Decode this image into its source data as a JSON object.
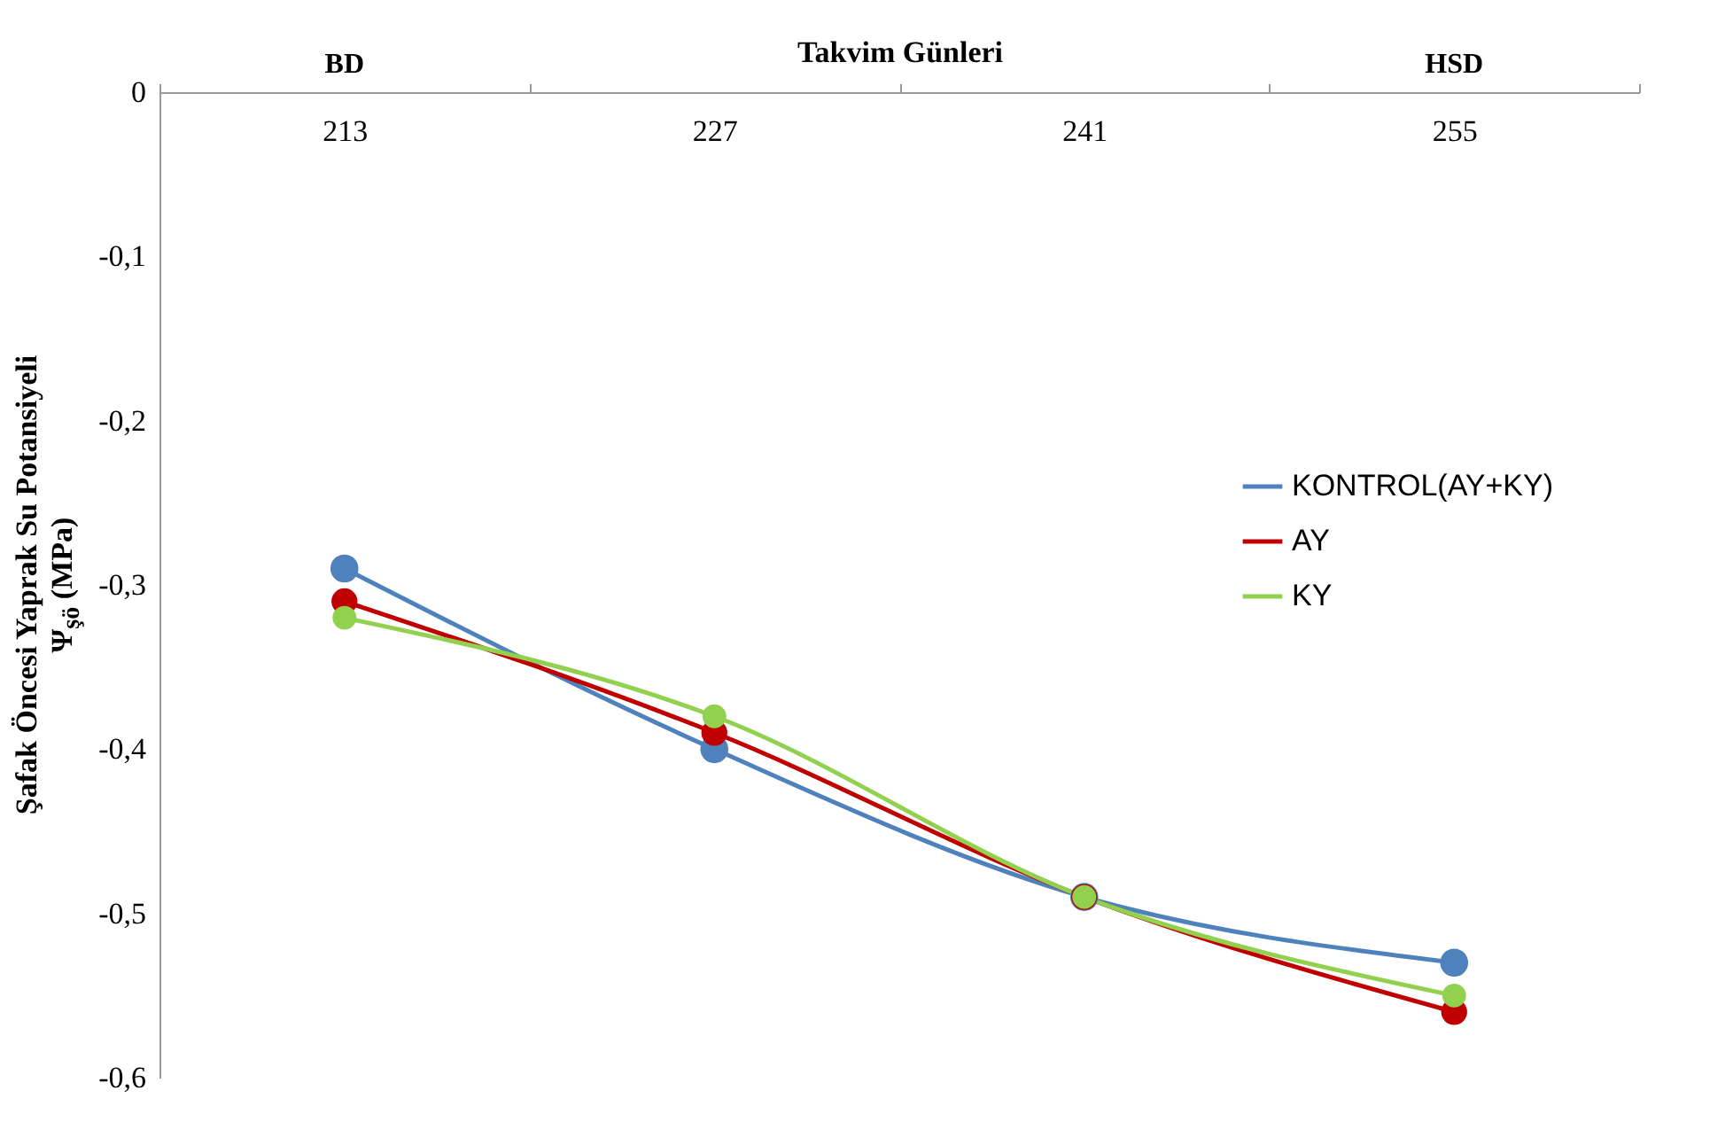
{
  "chart_data": {
    "type": "line",
    "xlabel": "Takvim Günleri",
    "ylabel": "Şafak Öncesi Yaprak Su Potansiyeli\nΨ$_{şö}$ (MPa)",
    "categories": [
      "213",
      "227",
      "241",
      "255"
    ],
    "annotations": [
      "BD",
      "HSD"
    ],
    "series": [
      {
        "name": "KONTROL(AY+KY)",
        "color": "#4f81bd",
        "values": [
          -0.29,
          -0.4,
          -0.49,
          -0.53
        ]
      },
      {
        "name": "AY",
        "color": "#c00000",
        "values": [
          -0.31,
          -0.39,
          -0.49,
          -0.56
        ]
      },
      {
        "name": "KY",
        "color": "#92d050",
        "values": [
          -0.32,
          -0.38,
          -0.49,
          -0.55
        ]
      }
    ],
    "ylim": [
      -0.6,
      0
    ],
    "yticks": [
      {
        "value": -0.6,
        "label": "-0,6"
      },
      {
        "value": -0.5,
        "label": "-0,5"
      },
      {
        "value": -0.4,
        "label": "-0,4"
      },
      {
        "value": -0.3,
        "label": "-0,3"
      },
      {
        "value": -0.2,
        "label": "-0,2"
      },
      {
        "value": -0.1,
        "label": "-0,1"
      },
      0
    ],
    "legend": "right",
    "marker": "circle",
    "line_style": "solid",
    "grid": false
  }
}
